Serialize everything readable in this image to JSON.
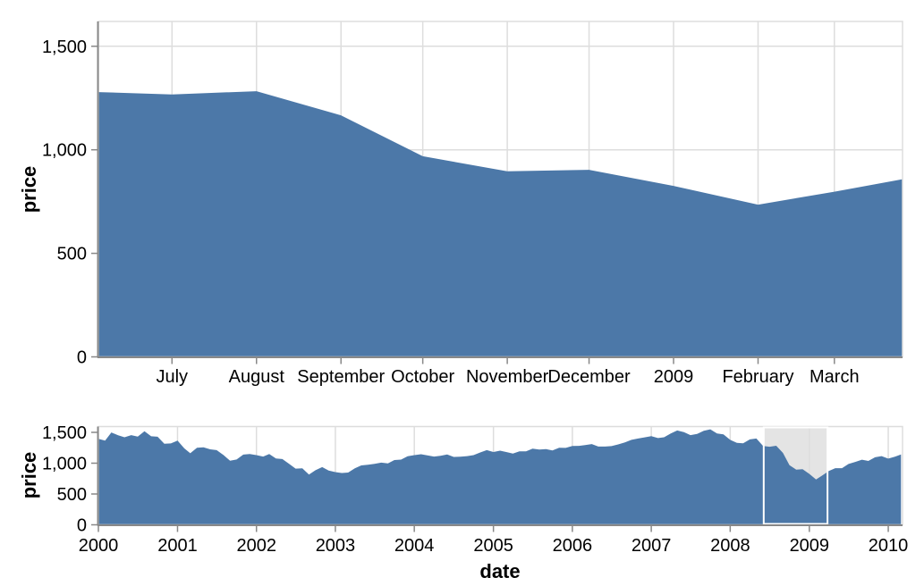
{
  "colors": {
    "area": "#4c78a8",
    "grid": "#dddddd",
    "view_border": "#dddddd",
    "axis": "#888888",
    "label": "#000000",
    "brush_fill": "#e4e4e4",
    "brush_stroke": "#ffffff",
    "background": "#ffffff"
  },
  "chart_data": [
    {
      "id": "detail",
      "type": "area",
      "title": "",
      "xlabel": "",
      "ylabel": "price",
      "ylim": [
        0,
        1600
      ],
      "grid": "both",
      "x_domain": [
        "2008-06-04",
        "2009-03-26"
      ],
      "y_ticks": [
        {
          "value": 0,
          "label": "0"
        },
        {
          "value": 500,
          "label": "500"
        },
        {
          "value": 1000,
          "label": "1,000"
        },
        {
          "value": 1500,
          "label": "1,500"
        }
      ],
      "x_ticks": [
        {
          "date": "2008-07-01",
          "label": "July"
        },
        {
          "date": "2008-08-01",
          "label": "August"
        },
        {
          "date": "2008-09-01",
          "label": "September"
        },
        {
          "date": "2008-10-01",
          "label": "October"
        },
        {
          "date": "2008-11-01",
          "label": "November"
        },
        {
          "date": "2008-12-01",
          "label": "December"
        },
        {
          "date": "2009-01-01",
          "label": "2009"
        },
        {
          "date": "2009-02-01",
          "label": "February"
        },
        {
          "date": "2009-03-01",
          "label": "March"
        }
      ],
      "series": {
        "name": "sp500 price (detail, monthly)",
        "start_month": "2008-06",
        "values": [
          1280.0,
          1267.38,
          1282.83,
          1166.36,
          968.75,
          896.24,
          903.25,
          825.88,
          735.09,
          797.87,
          872.81
        ]
      }
    },
    {
      "id": "overview",
      "type": "area",
      "title": "",
      "xlabel": "date",
      "ylabel": "price",
      "ylim": [
        0,
        1600
      ],
      "grid": "x-only",
      "x_domain": [
        "2000-01-01",
        "2010-03-08"
      ],
      "y_ticks": [
        {
          "value": 0,
          "label": "0"
        },
        {
          "value": 500,
          "label": "500"
        },
        {
          "value": 1000,
          "label": "1,000"
        },
        {
          "value": 1500,
          "label": "1,500"
        }
      ],
      "x_ticks": [
        {
          "date": "2000-01-01",
          "label": "2000"
        },
        {
          "date": "2001-01-01",
          "label": "2001"
        },
        {
          "date": "2002-01-01",
          "label": "2002"
        },
        {
          "date": "2003-01-01",
          "label": "2003"
        },
        {
          "date": "2004-01-01",
          "label": "2004"
        },
        {
          "date": "2005-01-01",
          "label": "2005"
        },
        {
          "date": "2006-01-01",
          "label": "2006"
        },
        {
          "date": "2007-01-01",
          "label": "2007"
        },
        {
          "date": "2008-01-01",
          "label": "2008"
        },
        {
          "date": "2009-01-01",
          "label": "2009"
        },
        {
          "date": "2010-01-01",
          "label": "2010"
        }
      ],
      "brush": {
        "start": "2008-06-04",
        "end": "2009-03-26"
      },
      "series": {
        "name": "sp500 price (overview, monthly)",
        "start_month": "2000-01",
        "values": [
          1394.46,
          1366.42,
          1498.58,
          1452.43,
          1420.6,
          1454.6,
          1430.83,
          1517.68,
          1436.51,
          1429.4,
          1314.95,
          1320.28,
          1366.01,
          1239.94,
          1160.33,
          1249.46,
          1255.82,
          1224.38,
          1211.23,
          1133.58,
          1040.94,
          1059.78,
          1139.45,
          1148.08,
          1130.2,
          1106.73,
          1147.39,
          1076.92,
          1067.14,
          989.82,
          911.62,
          916.07,
          815.28,
          885.76,
          936.31,
          879.82,
          855.7,
          841.15,
          848.18,
          916.92,
          963.59,
          974.5,
          990.31,
          1008.01,
          995.97,
          1050.71,
          1058.2,
          1111.92,
          1131.13,
          1144.94,
          1126.21,
          1107.3,
          1120.68,
          1140.84,
          1101.72,
          1104.24,
          1114.58,
          1130.2,
          1173.82,
          1211.92,
          1181.27,
          1203.6,
          1180.59,
          1156.85,
          1191.5,
          1191.33,
          1234.18,
          1220.33,
          1228.81,
          1207.01,
          1249.48,
          1248.29,
          1280.08,
          1280.66,
          1294.87,
          1310.61,
          1270.09,
          1270.2,
          1276.66,
          1303.82,
          1335.85,
          1377.94,
          1400.63,
          1418.3,
          1438.24,
          1406.82,
          1420.86,
          1482.37,
          1530.62,
          1503.35,
          1455.27,
          1473.99,
          1526.75,
          1549.38,
          1481.14,
          1468.36,
          1378.55,
          1330.63,
          1322.7,
          1385.59,
          1400.38,
          1280.0,
          1267.38,
          1282.83,
          1166.36,
          968.75,
          896.24,
          903.25,
          825.88,
          735.09,
          797.87,
          872.81,
          919.14,
          919.32,
          987.48,
          1020.62,
          1057.08,
          1036.19,
          1095.63,
          1115.1,
          1073.87,
          1104.49,
          1140.45
        ]
      }
    }
  ]
}
